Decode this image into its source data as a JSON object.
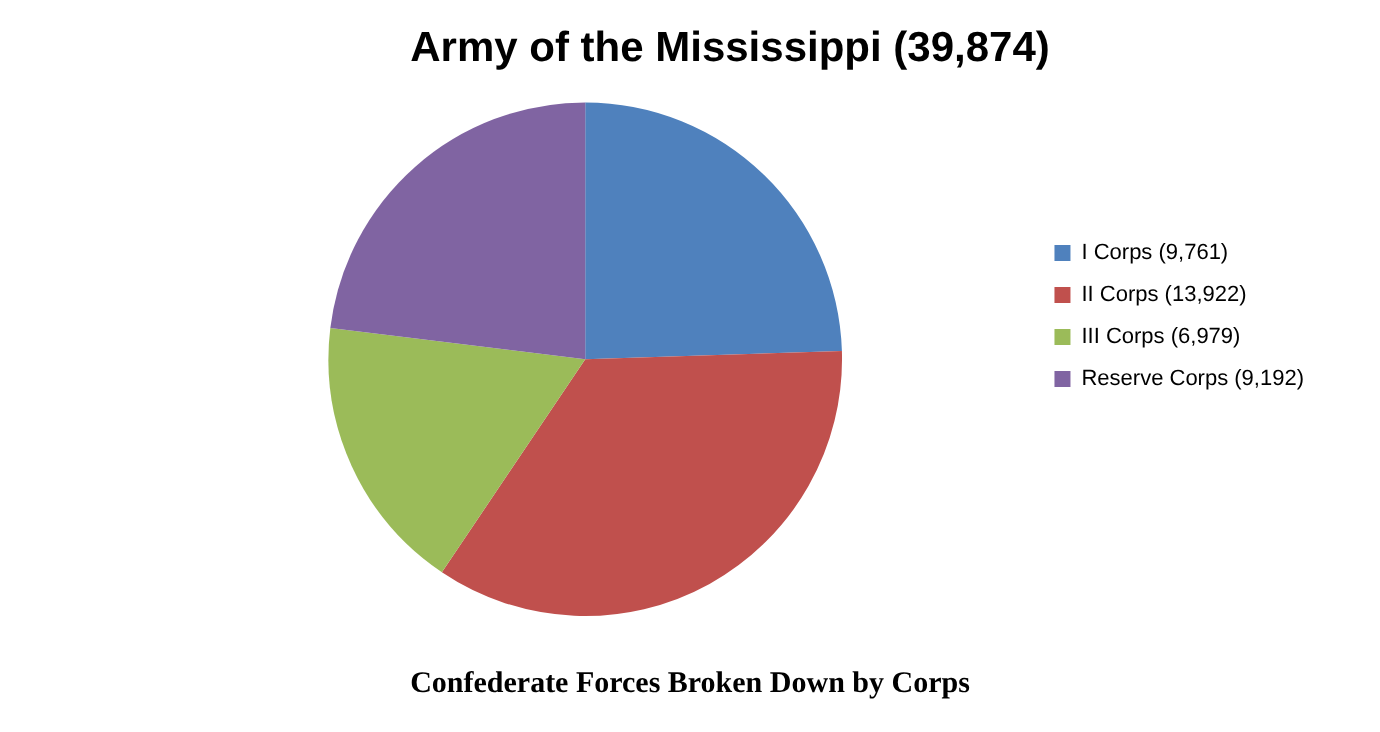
{
  "chart_data": {
    "type": "pie",
    "title": "Army of the Mississippi (39,874)",
    "categories": [
      "I Corps (9,761)",
      "II Corps (13,922)",
      "III Corps (6,979)",
      "Reserve Corps (9,192)"
    ],
    "values": [
      9761,
      13922,
      6979,
      9192
    ],
    "colors": [
      "#4f81bd",
      "#c0504d",
      "#9bbb59",
      "#8064a2"
    ],
    "legend": "right",
    "annotations": [
      "Confederate Forces Broken Down by Corps"
    ]
  }
}
